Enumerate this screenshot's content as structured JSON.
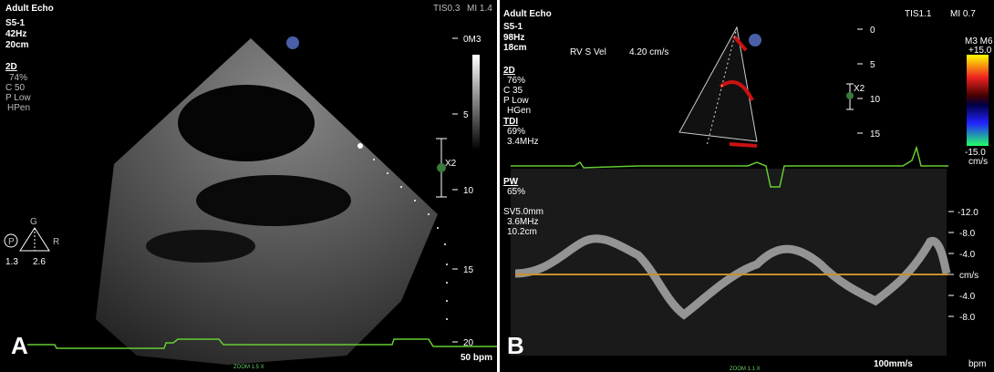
{
  "panel_a": {
    "label": "A",
    "header": {
      "mode": "Adult Echo",
      "tis": "TIS0.3",
      "mi": "MI 1.4"
    },
    "settings": [
      "S5-1",
      "42Hz",
      "20cm",
      "2D",
      "74%",
      "C 50",
      "P Low",
      "HPen"
    ],
    "depth_scale": [
      "0M3",
      "5",
      "10",
      "15",
      "20"
    ],
    "zoom_marker": "X2",
    "orientation": {
      "top": "G",
      "right": "R",
      "probe": "P",
      "left_value": "1.3",
      "right_value": "2.6"
    },
    "heart_rate": "50 bpm",
    "zoom": "ZOOM 1.5 X"
  },
  "panel_b": {
    "label": "B",
    "header": {
      "mode": "Adult Echo",
      "tis": "TIS1.1",
      "mi": "MI 0.7"
    },
    "settings": [
      "S5-1",
      "98Hz",
      "18cm"
    ],
    "measurement": {
      "name": "RV S Vel",
      "value": "4.20 cm/s"
    },
    "settings_2d": [
      "2D",
      "76%",
      "C 35",
      "P Low",
      "HGen"
    ],
    "settings_tdi": [
      "TDI",
      "69%",
      "3.4MHz"
    ],
    "settings_pw": [
      "PW",
      "65%",
      "SV5.0mm",
      "3.6MHz",
      "10.2cm"
    ],
    "depth_scale": [
      "0",
      "5",
      "10",
      "15"
    ],
    "zoom_marker": "X2",
    "color_scale": {
      "map": "M3 M6",
      "top": "+15.0",
      "bottom": "-15.0",
      "unit": "cm/s"
    },
    "velocity_scale": [
      "-12.0",
      "-8.0",
      "-4.0",
      "cm/s",
      "-4.0",
      "-8.0"
    ],
    "sweep_speed": "100mm/s",
    "heart_rate": "bpm",
    "zoom": "ZOOM 1.1 X"
  }
}
